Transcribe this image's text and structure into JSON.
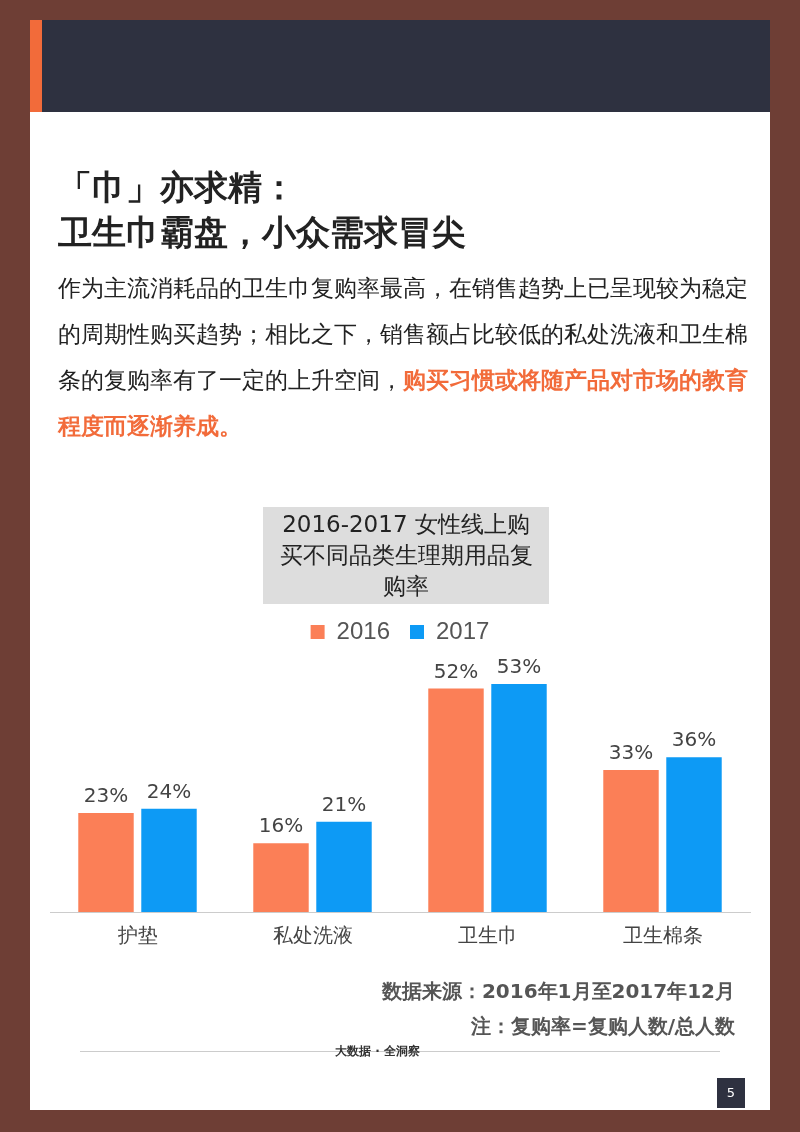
{
  "chart_data": {
    "type": "bar",
    "title": "2016-2017 女性线上购买不同品类生理期用品复购率",
    "categories": [
      "护垫",
      "私处洗液",
      "卫生巾",
      "卫生棉条"
    ],
    "series": [
      {
        "name": "2016",
        "color": "#fb7f57",
        "values": [
          23,
          16,
          52,
          33
        ],
        "value_labels": [
          "23%",
          "16%",
          "52%",
          "33%"
        ]
      },
      {
        "name": "2017",
        "color": "#0d9af5",
        "values": [
          24,
          21,
          53,
          36
        ],
        "value_labels": [
          "24%",
          "21%",
          "53%",
          "36%"
        ]
      }
    ],
    "legend": "top",
    "grid": false,
    "tick_labels": "x",
    "annotations": [
      "「巾」亦求精：",
      "卫生巾霸盘，小众需求冒尖",
      "作为主流消耗品的卫生巾复购率最高，在销售趋势上已呈现较为稳定的周期性购买趋势；相比之下，销售额占比较低的私处洗液和卫生棉条的复购率有了一定的上升空间，",
      "购买习惯或将随产品对市场的教育程度而逐渐养成。",
      "数据来源：2016年1月至2017年12月",
      "注：复购率=复购人数/总人数",
      "大数据 · 全洞察",
      "5"
    ]
  }
}
